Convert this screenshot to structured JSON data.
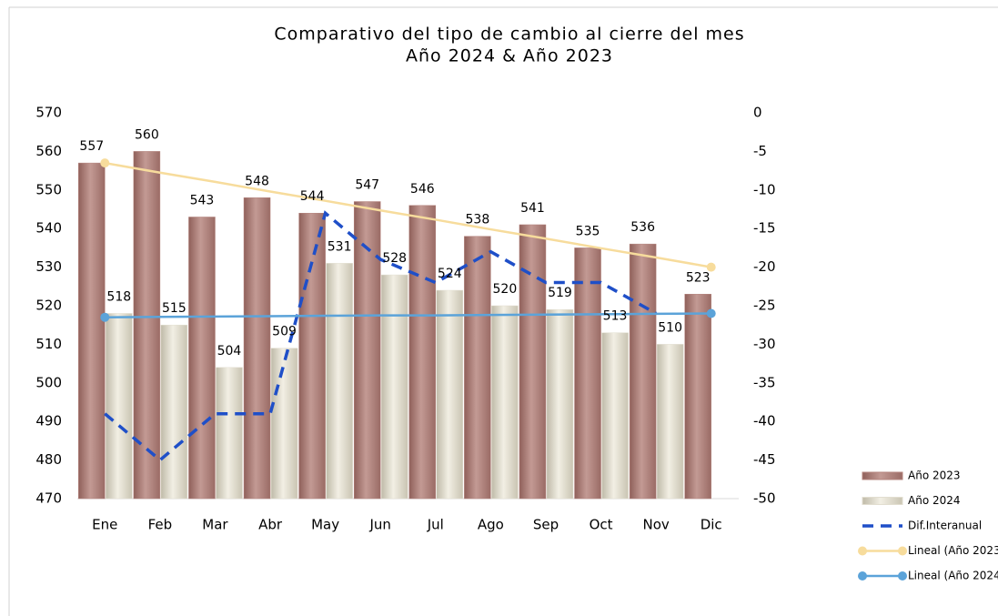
{
  "chart_data": {
    "type": "bar",
    "title": "Comparativo del tipo de cambio al cierre del mes",
    "subtitle": "Año 2024 & Año 2023",
    "categories": [
      "Ene",
      "Feb",
      "Mar",
      "Abr",
      "May",
      "Jun",
      "Jul",
      "Ago",
      "Sep",
      "Oct",
      "Nov",
      "Dic"
    ],
    "series": [
      {
        "name": "Año 2023",
        "type": "bar",
        "color": "#b5847e",
        "values": [
          557,
          560,
          543,
          548,
          544,
          547,
          546,
          538,
          541,
          535,
          536,
          523
        ]
      },
      {
        "name": "Año 2024",
        "type": "bar",
        "color": "#e2ded0",
        "values": [
          518,
          515,
          504,
          509,
          531,
          528,
          524,
          520,
          519,
          513,
          510,
          null
        ]
      },
      {
        "name": "Dif.Interanual",
        "type": "dashed-line",
        "axis": "y2",
        "color": "#1f4fc8",
        "values": [
          -39,
          -45,
          -39,
          -39,
          -13,
          -19,
          -22,
          -18,
          -22,
          -22,
          -26,
          null
        ]
      },
      {
        "name": "Lineal (Año 2023)",
        "type": "trend",
        "color": "#f7dc9c",
        "values": [
          557,
          554.5,
          552.1,
          549.6,
          547.2,
          544.7,
          542.3,
          539.8,
          537.4,
          534.9,
          532.5,
          530
        ]
      },
      {
        "name": "Lineal (Año 2024)",
        "type": "trend",
        "color": "#5ba3d9",
        "values": [
          517,
          517.1,
          517.2,
          517.3,
          517.4,
          517.5,
          517.5,
          517.6,
          517.7,
          517.8,
          517.9,
          518
        ]
      }
    ],
    "ylim": [
      470,
      570
    ],
    "yticks": [
      470,
      480,
      490,
      500,
      510,
      520,
      530,
      540,
      550,
      560,
      570
    ],
    "y2lim": [
      -50,
      0
    ],
    "y2ticks": [
      -50,
      -45,
      -40,
      -35,
      -30,
      -25,
      -20,
      -15,
      -10,
      -5,
      0
    ]
  }
}
